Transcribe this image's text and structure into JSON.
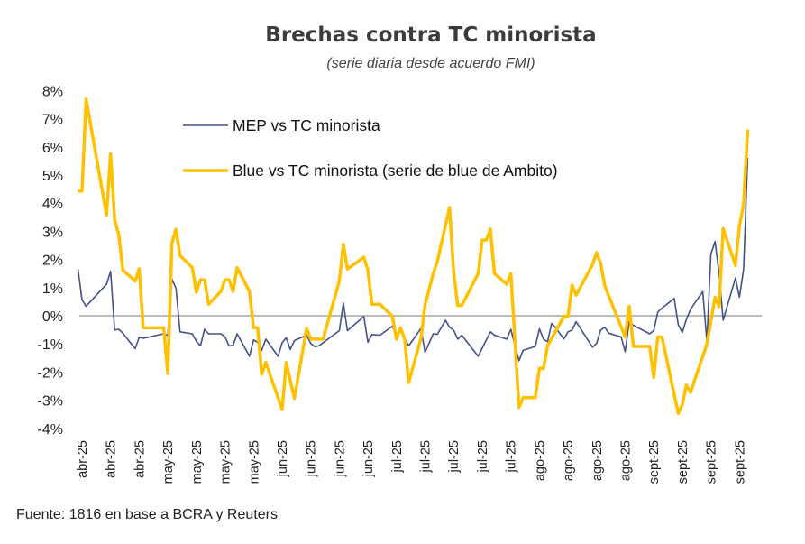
{
  "chart_data": {
    "type": "line",
    "title": "Brechas contra TC minorista",
    "subtitle": "(serie diaria desde acuerdo FMI)",
    "xlabel": "",
    "ylabel": "",
    "ylim": [
      -4,
      8
    ],
    "y_ticks": [
      "8%",
      "7%",
      "6%",
      "5%",
      "4%",
      "3%",
      "2%",
      "1%",
      "0%",
      "-1%",
      "-2%",
      "-3%",
      "-4%"
    ],
    "y_tick_values": [
      8,
      7,
      6,
      5,
      4,
      3,
      2,
      1,
      0,
      -1,
      -2,
      -3,
      -4
    ],
    "x_tick_labels": [
      "abr-25",
      "abr-25",
      "abr-25",
      "may-25",
      "may-25",
      "may-25",
      "may-25",
      "jun-25",
      "jun-25",
      "jun-25",
      "jun-25",
      "jul-25",
      "jul-25",
      "jul-25",
      "jul-25",
      "jul-25",
      "ago-25",
      "ago-25",
      "ago-25",
      "ago-25",
      "sept-25",
      "sept-25",
      "sept-25",
      "sept-25"
    ],
    "x_tick_dates": [
      "2025-04-15",
      "2025-04-22",
      "2025-04-29",
      "2025-05-06",
      "2025-05-13",
      "2025-05-20",
      "2025-05-27",
      "2025-06-03",
      "2025-06-10",
      "2025-06-17",
      "2025-06-24",
      "2025-07-01",
      "2025-07-08",
      "2025-07-15",
      "2025-07-22",
      "2025-07-29",
      "2025-08-05",
      "2025-08-12",
      "2025-08-19",
      "2025-08-26",
      "2025-09-02",
      "2025-09-09",
      "2025-09-16",
      "2025-09-23"
    ],
    "zero_line": true,
    "grid": false,
    "legend_position": "top-left inside",
    "unit": "%",
    "series": [
      {
        "name": "MEP vs TC minorista",
        "color": "#44508a",
        "points": [
          [
            "2025-04-14",
            1.66
          ],
          [
            "2025-04-15",
            0.56
          ],
          [
            "2025-04-16",
            0.34
          ],
          [
            "2025-04-21",
            1.12
          ],
          [
            "2025-04-22",
            1.58
          ],
          [
            "2025-04-23",
            -0.51
          ],
          [
            "2025-04-24",
            -0.48
          ],
          [
            "2025-04-25",
            -0.62
          ],
          [
            "2025-04-28",
            -1.17
          ],
          [
            "2025-04-29",
            -0.77
          ],
          [
            "2025-04-30",
            -0.8
          ],
          [
            "2025-05-05",
            -0.64
          ],
          [
            "2025-05-06",
            -0.7
          ],
          [
            "2025-05-07",
            1.3
          ],
          [
            "2025-05-08",
            0.98
          ],
          [
            "2025-05-09",
            -0.57
          ],
          [
            "2025-05-12",
            -0.64
          ],
          [
            "2025-05-13",
            -0.91
          ],
          [
            "2025-05-14",
            -1.07
          ],
          [
            "2025-05-15",
            -0.48
          ],
          [
            "2025-05-16",
            -0.64
          ],
          [
            "2025-05-19",
            -0.64
          ],
          [
            "2025-05-20",
            -0.75
          ],
          [
            "2025-05-21",
            -1.07
          ],
          [
            "2025-05-22",
            -1.05
          ],
          [
            "2025-05-23",
            -0.64
          ],
          [
            "2025-05-26",
            -1.44
          ],
          [
            "2025-05-27",
            -0.86
          ],
          [
            "2025-05-28",
            -0.94
          ],
          [
            "2025-05-29",
            -1.23
          ],
          [
            "2025-05-30",
            -0.83
          ],
          [
            "2025-06-02",
            -1.44
          ],
          [
            "2025-06-03",
            -0.96
          ],
          [
            "2025-06-04",
            -0.78
          ],
          [
            "2025-06-05",
            -1.2
          ],
          [
            "2025-06-06",
            -0.88
          ],
          [
            "2025-06-09",
            -0.69
          ],
          [
            "2025-06-10",
            -0.98
          ],
          [
            "2025-06-11",
            -1.1
          ],
          [
            "2025-06-12",
            -1.07
          ],
          [
            "2025-06-17",
            -0.53
          ],
          [
            "2025-06-18",
            0.45
          ],
          [
            "2025-06-19",
            -0.53
          ],
          [
            "2025-06-23",
            -0.03
          ],
          [
            "2025-06-24",
            -0.94
          ],
          [
            "2025-06-25",
            -0.67
          ],
          [
            "2025-06-27",
            -0.69
          ],
          [
            "2025-06-30",
            -0.37
          ],
          [
            "2025-07-01",
            -0.73
          ],
          [
            "2025-07-02",
            -0.53
          ],
          [
            "2025-07-04",
            -1.07
          ],
          [
            "2025-07-07",
            -0.45
          ],
          [
            "2025-07-08",
            -1.3
          ],
          [
            "2025-07-10",
            -0.64
          ],
          [
            "2025-07-11",
            -0.66
          ],
          [
            "2025-07-13",
            -0.16
          ],
          [
            "2025-07-14",
            -0.41
          ],
          [
            "2025-07-15",
            -0.51
          ],
          [
            "2025-07-16",
            -0.83
          ],
          [
            "2025-07-17",
            -0.69
          ],
          [
            "2025-07-21",
            -1.44
          ],
          [
            "2025-07-24",
            -0.57
          ],
          [
            "2025-07-25",
            -0.69
          ],
          [
            "2025-07-28",
            -0.83
          ],
          [
            "2025-07-29",
            -0.48
          ],
          [
            "2025-07-31",
            -1.6
          ],
          [
            "2025-08-01",
            -1.23
          ],
          [
            "2025-08-04",
            -1.09
          ],
          [
            "2025-08-05",
            -0.46
          ],
          [
            "2025-08-06",
            -0.83
          ],
          [
            "2025-08-07",
            -0.92
          ],
          [
            "2025-08-08",
            -0.27
          ],
          [
            "2025-08-09",
            -0.43
          ],
          [
            "2025-08-11",
            -0.83
          ],
          [
            "2025-08-12",
            -0.57
          ],
          [
            "2025-08-13",
            -0.51
          ],
          [
            "2025-08-14",
            -0.21
          ],
          [
            "2025-08-18",
            -1.12
          ],
          [
            "2025-08-19",
            -0.98
          ],
          [
            "2025-08-20",
            -0.51
          ],
          [
            "2025-08-21",
            -0.41
          ],
          [
            "2025-08-22",
            -0.62
          ],
          [
            "2025-08-25",
            -0.75
          ],
          [
            "2025-08-26",
            -1.28
          ],
          [
            "2025-08-27",
            -0.21
          ],
          [
            "2025-08-28",
            -0.34
          ],
          [
            "2025-09-01",
            -0.64
          ],
          [
            "2025-09-02",
            -0.53
          ],
          [
            "2025-09-03",
            0.13
          ],
          [
            "2025-09-04",
            0.27
          ],
          [
            "2025-09-07",
            0.62
          ],
          [
            "2025-09-08",
            -0.32
          ],
          [
            "2025-09-09",
            -0.59
          ],
          [
            "2025-09-10",
            -0.13
          ],
          [
            "2025-09-11",
            0.23
          ],
          [
            "2025-09-14",
            0.86
          ],
          [
            "2025-09-15",
            -0.91
          ],
          [
            "2025-09-16",
            2.19
          ],
          [
            "2025-09-17",
            2.64
          ],
          [
            "2025-09-18",
            1.5
          ],
          [
            "2025-09-19",
            -0.16
          ],
          [
            "2025-09-22",
            1.34
          ],
          [
            "2025-09-23",
            0.66
          ],
          [
            "2025-09-24",
            1.66
          ],
          [
            "2025-09-25",
            5.61
          ]
        ]
      },
      {
        "name": "Blue vs TC minorista (serie de blue de Ambito)",
        "color": "#ffc000",
        "points": [
          [
            "2025-04-14",
            4.43
          ],
          [
            "2025-04-15",
            4.43
          ],
          [
            "2025-04-16",
            7.7
          ],
          [
            "2025-04-21",
            3.58
          ],
          [
            "2025-04-22",
            5.75
          ],
          [
            "2025-04-23",
            3.4
          ],
          [
            "2025-04-24",
            2.88
          ],
          [
            "2025-04-25",
            1.62
          ],
          [
            "2025-04-28",
            1.23
          ],
          [
            "2025-04-29",
            1.67
          ],
          [
            "2025-04-30",
            -0.43
          ],
          [
            "2025-05-05",
            -0.43
          ],
          [
            "2025-05-06",
            -2.05
          ],
          [
            "2025-05-07",
            2.59
          ],
          [
            "2025-05-08",
            3.07
          ],
          [
            "2025-05-09",
            2.14
          ],
          [
            "2025-05-12",
            1.71
          ],
          [
            "2025-05-13",
            0.83
          ],
          [
            "2025-05-14",
            1.28
          ],
          [
            "2025-05-15",
            1.28
          ],
          [
            "2025-05-16",
            0.41
          ],
          [
            "2025-05-19",
            0.86
          ],
          [
            "2025-05-20",
            1.28
          ],
          [
            "2025-05-21",
            1.28
          ],
          [
            "2025-05-22",
            0.86
          ],
          [
            "2025-05-23",
            1.71
          ],
          [
            "2025-05-26",
            0.86
          ],
          [
            "2025-05-27",
            -0.43
          ],
          [
            "2025-05-28",
            -0.43
          ],
          [
            "2025-05-29",
            -2.08
          ],
          [
            "2025-05-30",
            -1.66
          ],
          [
            "2025-06-03",
            -3.33
          ],
          [
            "2025-06-04",
            -1.66
          ],
          [
            "2025-06-06",
            -2.94
          ],
          [
            "2025-06-09",
            -0.45
          ],
          [
            "2025-06-10",
            -0.83
          ],
          [
            "2025-06-13",
            -0.83
          ],
          [
            "2025-06-17",
            1.23
          ],
          [
            "2025-06-18",
            2.54
          ],
          [
            "2025-06-19",
            1.66
          ],
          [
            "2025-06-23",
            2.08
          ],
          [
            "2025-06-24",
            1.62
          ],
          [
            "2025-06-25",
            0.41
          ],
          [
            "2025-06-27",
            0.41
          ],
          [
            "2025-06-30",
            -0.02
          ],
          [
            "2025-07-01",
            -0.83
          ],
          [
            "2025-07-02",
            -0.43
          ],
          [
            "2025-07-03",
            -0.83
          ],
          [
            "2025-07-04",
            -2.37
          ],
          [
            "2025-07-07",
            -0.8
          ],
          [
            "2025-07-08",
            0.37
          ],
          [
            "2025-07-10",
            1.5
          ],
          [
            "2025-07-11",
            1.92
          ],
          [
            "2025-07-14",
            3.85
          ],
          [
            "2025-07-15",
            1.55
          ],
          [
            "2025-07-16",
            0.37
          ],
          [
            "2025-07-17",
            0.37
          ],
          [
            "2025-07-21",
            1.5
          ],
          [
            "2025-07-22",
            2.69
          ],
          [
            "2025-07-23",
            2.69
          ],
          [
            "2025-07-24",
            3.08
          ],
          [
            "2025-07-25",
            1.5
          ],
          [
            "2025-07-28",
            1.12
          ],
          [
            "2025-07-29",
            1.5
          ],
          [
            "2025-07-31",
            -3.26
          ],
          [
            "2025-08-01",
            -2.91
          ],
          [
            "2025-08-04",
            -2.91
          ],
          [
            "2025-08-05",
            -1.87
          ],
          [
            "2025-08-06",
            -1.87
          ],
          [
            "2025-08-07",
            -1.07
          ],
          [
            "2025-08-11",
            -0.02
          ],
          [
            "2025-08-12",
            -0.02
          ],
          [
            "2025-08-13",
            1.09
          ],
          [
            "2025-08-14",
            0.73
          ],
          [
            "2025-08-18",
            1.82
          ],
          [
            "2025-08-19",
            2.24
          ],
          [
            "2025-08-20",
            1.87
          ],
          [
            "2025-08-21",
            1.07
          ],
          [
            "2025-08-26",
            -0.75
          ],
          [
            "2025-08-27",
            0.34
          ],
          [
            "2025-08-28",
            -1.09
          ],
          [
            "2025-09-01",
            -1.09
          ],
          [
            "2025-09-02",
            -2.19
          ],
          [
            "2025-09-03",
            -0.75
          ],
          [
            "2025-09-04",
            -0.75
          ],
          [
            "2025-09-08",
            -3.47
          ],
          [
            "2025-09-09",
            -3.15
          ],
          [
            "2025-09-10",
            -2.46
          ],
          [
            "2025-09-11",
            -2.72
          ],
          [
            "2025-09-15",
            -1.02
          ],
          [
            "2025-09-17",
            0.66
          ],
          [
            "2025-09-18",
            0.32
          ],
          [
            "2025-09-19",
            3.1
          ],
          [
            "2025-09-22",
            1.79
          ],
          [
            "2025-09-23",
            3.2
          ],
          [
            "2025-09-24",
            3.97
          ],
          [
            "2025-09-25",
            6.62
          ]
        ]
      }
    ],
    "source": "Fuente: 1816 en base a BCRA y Reuters"
  }
}
